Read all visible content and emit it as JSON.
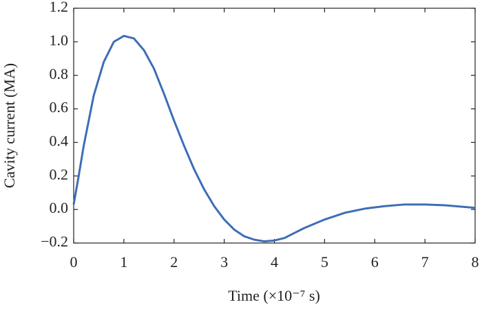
{
  "chart_data": {
    "type": "line",
    "xlabel": "Time (×10⁻⁷ s)",
    "ylabel": "Cavity current (MA)",
    "x": [
      0,
      0.1,
      0.2,
      0.4,
      0.6,
      0.8,
      1.0,
      1.2,
      1.4,
      1.6,
      1.8,
      2.0,
      2.2,
      2.4,
      2.6,
      2.8,
      3.0,
      3.2,
      3.4,
      3.6,
      3.8,
      4.0,
      4.2,
      4.4,
      4.6,
      4.8,
      5.0,
      5.4,
      5.8,
      6.2,
      6.6,
      7.0,
      7.4,
      8.0
    ],
    "series": [
      {
        "color": "#3d6db5",
        "values": [
          0.03,
          0.2,
          0.38,
          0.68,
          0.88,
          1.0,
          1.035,
          1.02,
          0.95,
          0.84,
          0.69,
          0.53,
          0.38,
          0.24,
          0.12,
          0.02,
          -0.06,
          -0.12,
          -0.16,
          -0.18,
          -0.19,
          -0.185,
          -0.17,
          -0.14,
          -0.11,
          -0.085,
          -0.06,
          -0.02,
          0.005,
          0.02,
          0.03,
          0.03,
          0.025,
          0.01
        ]
      }
    ],
    "xlim": [
      0,
      8
    ],
    "xticks": [
      0,
      1,
      2,
      3,
      4,
      5,
      6,
      7,
      8
    ],
    "ylim": [
      -0.2,
      1.2
    ],
    "yticks": [
      {
        "value": -0.2,
        "label": "−0.2"
      },
      {
        "value": 0,
        "label": "0.0"
      },
      0.2,
      0.4,
      0.6,
      0.8,
      {
        "value": 1,
        "label": "1.0"
      },
      1.2
    ]
  }
}
